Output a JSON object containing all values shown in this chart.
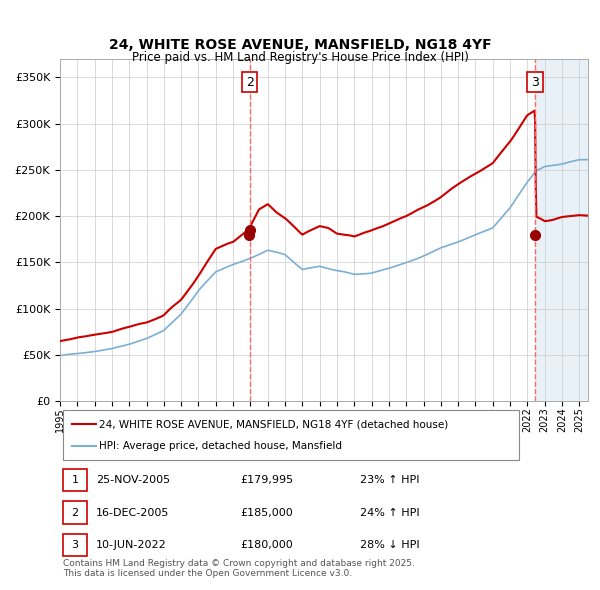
{
  "title": "24, WHITE ROSE AVENUE, MANSFIELD, NG18 4YF",
  "subtitle": "Price paid vs. HM Land Registry's House Price Index (HPI)",
  "legend_line1": "24, WHITE ROSE AVENUE, MANSFIELD, NG18 4YF (detached house)",
  "legend_line2": "HPI: Average price, detached house, Mansfield",
  "transactions": [
    {
      "num": 1,
      "date": "25-NOV-2005",
      "price": 179995,
      "pct": "23%",
      "dir": "↑",
      "label": "HPI"
    },
    {
      "num": 2,
      "date": "16-DEC-2005",
      "price": 185000,
      "pct": "24%",
      "dir": "↑",
      "label": "HPI"
    },
    {
      "num": 3,
      "date": "10-JUN-2022",
      "price": 180000,
      "pct": "28%",
      "dir": "↓",
      "label": "HPI"
    }
  ],
  "footnote": "Contains HM Land Registry data © Crown copyright and database right 2025.\nThis data is licensed under the Open Government Licence v3.0.",
  "sale2_x": 2005.96,
  "sale3_x": 2022.44,
  "ylim": [
    0,
    370000
  ],
  "xlim_start": 1995.0,
  "xlim_end": 2025.5,
  "hpi_color": "#7bafd4",
  "price_color": "#cc0000",
  "dot_color": "#990000",
  "vline_color": "#ff6666",
  "bg_after_color": "#e8f0f8",
  "grid_color": "#cccccc"
}
